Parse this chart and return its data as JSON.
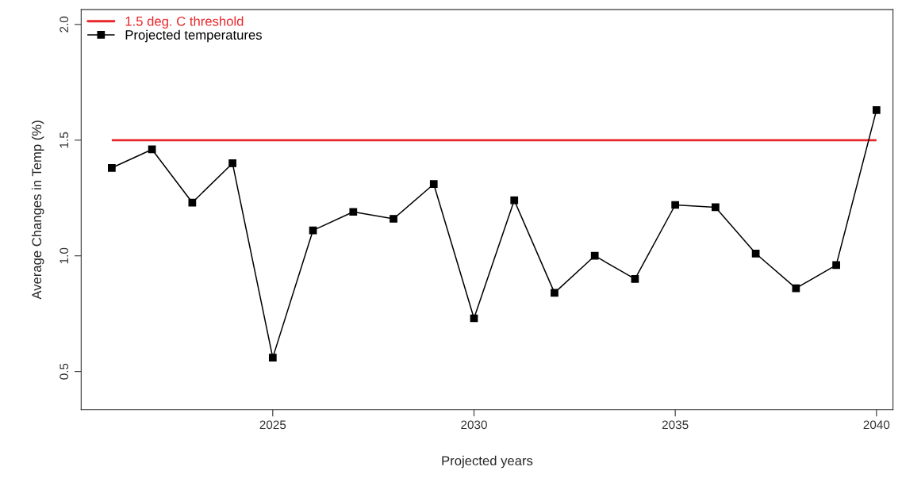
{
  "chart_data": {
    "type": "line",
    "xlabel": "Projected years",
    "ylabel": "Average Changes in Temp (%)",
    "x": [
      2021,
      2022,
      2023,
      2024,
      2025,
      2026,
      2027,
      2028,
      2029,
      2030,
      2031,
      2032,
      2033,
      2034,
      2035,
      2036,
      2037,
      2038,
      2039,
      2040
    ],
    "series": [
      {
        "name": "Projected temperatures",
        "color": "#000000",
        "values": [
          1.38,
          1.46,
          1.23,
          1.4,
          0.56,
          1.11,
          1.19,
          1.16,
          1.31,
          0.73,
          1.24,
          0.84,
          1.0,
          0.9,
          1.22,
          1.21,
          1.01,
          0.86,
          0.96,
          1.63
        ]
      }
    ],
    "ref_lines": [
      {
        "axis": "y",
        "value": 1.5,
        "label": "1.5 deg. C threshold",
        "color": "#e8262b"
      }
    ],
    "xlim": [
      2020.24,
      2040.41
    ],
    "ylim": [
      0.335,
      2.064
    ],
    "xticks": [
      2025,
      2030,
      2035,
      2040
    ],
    "yticks": [
      0.5,
      {
        "value": 1,
        "label": "1.0"
      },
      1.5,
      {
        "value": 2,
        "label": "2.0"
      }
    ],
    "marker": "square",
    "line_style": "solid",
    "legend": "top left",
    "grid": false
  }
}
